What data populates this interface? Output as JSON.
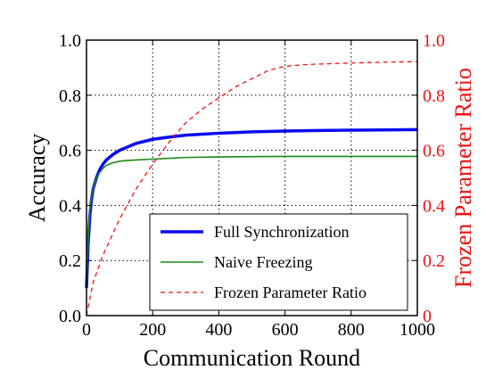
{
  "chart_data": {
    "type": "line",
    "title": "",
    "xlabel": "Communication Round",
    "ylabel_left": "Accuracy",
    "ylabel_right": "Frozen Parameter Ratio",
    "xlim": [
      0,
      1000
    ],
    "ylim_left": [
      0,
      1
    ],
    "ylim_right": [
      0,
      1
    ],
    "x_ticks": [
      0,
      200,
      400,
      600,
      800,
      1000
    ],
    "y_ticks_left": [
      "0.0",
      "0.2",
      "0.4",
      "0.6",
      "0.8",
      "1.0"
    ],
    "y_ticks_right": [
      "0",
      "0.2",
      "0.4",
      "0.6",
      "0.8",
      "1.0"
    ],
    "grid": true,
    "legend_position": "bottom-right",
    "colors": {
      "full_sync": "#0a0af0",
      "naive": "#1a8a1a",
      "frozen": "#ee1111",
      "right_axis": "#ee1111"
    },
    "series": [
      {
        "name": "Full Synchronization",
        "axis": "left",
        "style": "thick-solid",
        "x": [
          0,
          5,
          10,
          15,
          20,
          30,
          40,
          50,
          60,
          80,
          100,
          120,
          150,
          200,
          250,
          300,
          400,
          500,
          600,
          700,
          800,
          900,
          1000
        ],
        "y": [
          0.1,
          0.26,
          0.36,
          0.42,
          0.46,
          0.5,
          0.53,
          0.55,
          0.565,
          0.585,
          0.6,
          0.61,
          0.625,
          0.64,
          0.648,
          0.655,
          0.662,
          0.667,
          0.67,
          0.672,
          0.673,
          0.674,
          0.675
        ]
      },
      {
        "name": "Naive Freezing",
        "axis": "left",
        "style": "solid",
        "x": [
          0,
          5,
          10,
          15,
          20,
          30,
          40,
          50,
          60,
          80,
          100,
          120,
          150,
          200,
          250,
          300,
          400,
          500,
          600,
          700,
          800,
          900,
          1000
        ],
        "y": [
          0.1,
          0.28,
          0.38,
          0.43,
          0.46,
          0.5,
          0.52,
          0.535,
          0.545,
          0.555,
          0.56,
          0.563,
          0.565,
          0.568,
          0.571,
          0.574,
          0.576,
          0.577,
          0.578,
          0.578,
          0.578,
          0.578,
          0.578
        ]
      },
      {
        "name": "Frozen Parameter Ratio",
        "axis": "right",
        "style": "dashed",
        "x": [
          0,
          20,
          50,
          100,
          150,
          200,
          250,
          300,
          350,
          400,
          450,
          500,
          550,
          600,
          650,
          700,
          800,
          900,
          1000
        ],
        "y": [
          0.0,
          0.12,
          0.22,
          0.35,
          0.46,
          0.55,
          0.63,
          0.7,
          0.75,
          0.79,
          0.83,
          0.86,
          0.89,
          0.905,
          0.91,
          0.913,
          0.917,
          0.92,
          0.922
        ]
      }
    ]
  }
}
